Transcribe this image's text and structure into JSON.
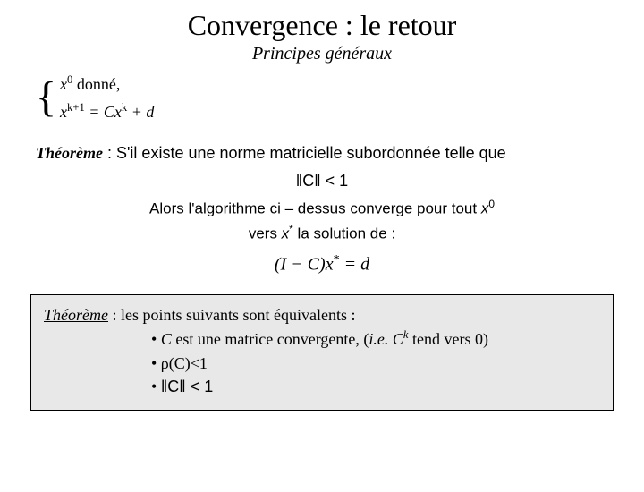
{
  "colors": {
    "background": "#ffffff",
    "text": "#000000",
    "box_background": "#e8e8e8",
    "box_border": "#000000"
  },
  "typography": {
    "title_fontsize": 32,
    "subtitle_fontsize": 20,
    "body_fontsize": 18,
    "font_family_serif": "Times New Roman",
    "font_family_sans": "Arial"
  },
  "title": "Convergence : le retour",
  "subtitle": "Principes généraux",
  "system": {
    "line1_pre": "x",
    "line1_sup": "0",
    "line1_post": " donné,",
    "line2_pre": "x",
    "line2_sup": "k+1",
    "line2_mid": " = Cx",
    "line2_sup2": "k",
    "line2_post": " + d"
  },
  "theorem1": {
    "label": "Théorème",
    "intro": " : S'il existe une norme matricielle subordonnée telle que",
    "norm_expr": "‖C‖ < 1",
    "alors_pre": "Alors l'algorithme ci – dessus converge pour tout ",
    "alors_x": "x",
    "alors_sup": "0",
    "vers_pre": "vers ",
    "vers_x": "x",
    "vers_sup": "*",
    "vers_post": " la solution de :",
    "eq_pre": "(I − C)x",
    "eq_sup": "*",
    "eq_post": " = d"
  },
  "theorem2": {
    "label": "Théorème",
    "intro": " : les points suivants sont équivalents :",
    "bullet1_pre": "• ",
    "bullet1_c": "C",
    "bullet1_mid": " est une matrice convergente, (",
    "bullet1_ie": "i.e.",
    "bullet1_ck_c": " C",
    "bullet1_ck_sup": "k",
    "bullet1_post": " tend vers 0)",
    "bullet2": "• ρ(C)<1",
    "bullet3_pre": "• ",
    "bullet3_norm": "‖C‖ < 1"
  }
}
